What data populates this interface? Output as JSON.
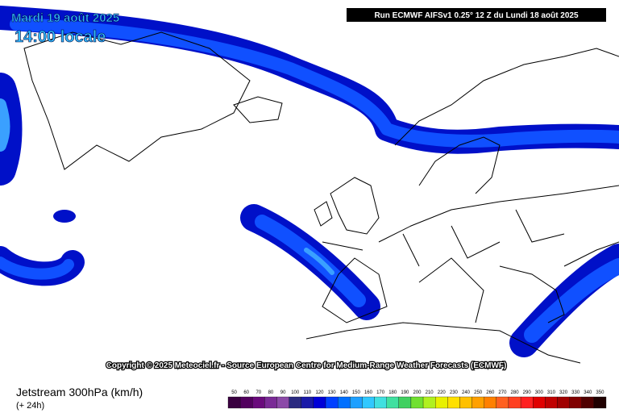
{
  "header": {
    "date": "Mardi 19 août 2025",
    "time": "14:00 locale",
    "run": "Run ECMWF AIFSv1 0.25° 12 Z du Lundi 18 août 2025"
  },
  "copyright": "Copyright © 2025 Meteociel.fr - Source European Centre for Medium-Range Weather Forecasts (ECMWF)",
  "footer": {
    "title": "Jetstream 300hPa (km/h)",
    "lead": "(+ 24h)"
  },
  "legend": {
    "values": [
      50,
      60,
      70,
      80,
      90,
      100,
      110,
      120,
      130,
      140,
      150,
      160,
      170,
      180,
      190,
      200,
      210,
      220,
      230,
      240,
      250,
      260,
      270,
      280,
      290,
      300,
      310,
      320,
      330,
      340,
      350
    ],
    "colors": [
      "#3a0040",
      "#52005e",
      "#6a0a7c",
      "#7a2a96",
      "#8c4aa8",
      "#2a2a80",
      "#1a1aa8",
      "#0000d8",
      "#0040ff",
      "#0070ff",
      "#1ea0ff",
      "#30c8ff",
      "#40e0e0",
      "#40e0a0",
      "#40d060",
      "#70e030",
      "#b0f020",
      "#e8f000",
      "#ffe000",
      "#ffc000",
      "#ffa000",
      "#ff8000",
      "#ff6020",
      "#ff4020",
      "#ff2020",
      "#e00000",
      "#c00000",
      "#a00000",
      "#800000",
      "#500000",
      "#200000"
    ]
  }
}
